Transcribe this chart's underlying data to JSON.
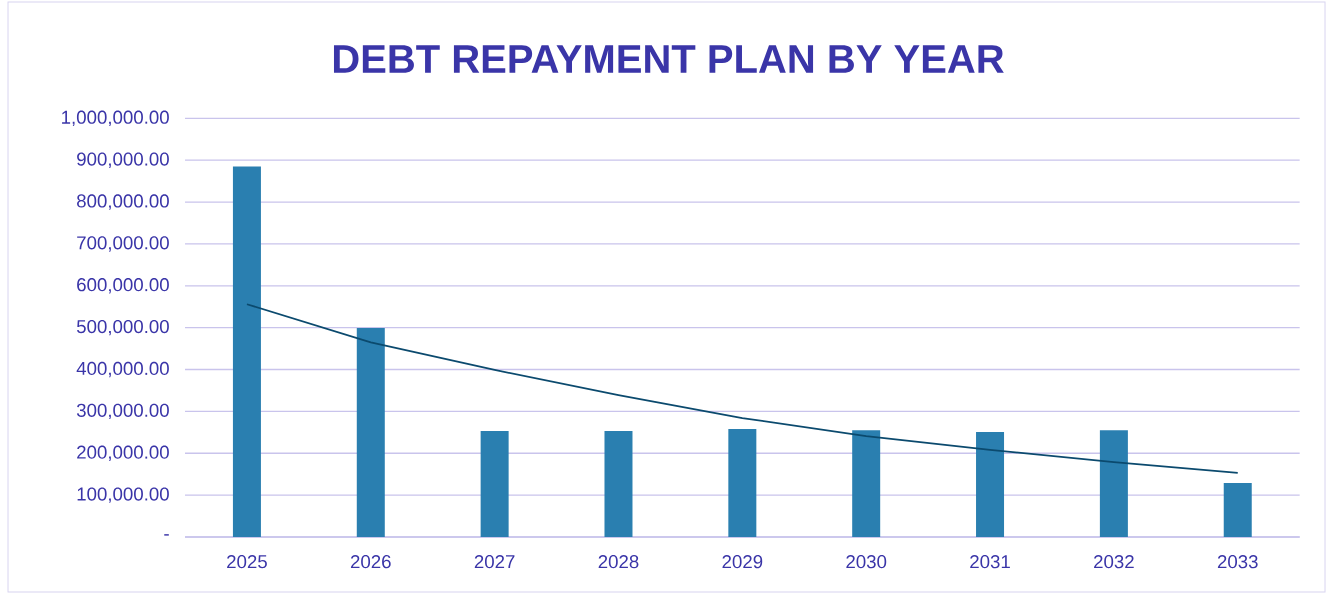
{
  "chart_data": {
    "type": "bar",
    "title": "DEBT REPAYMENT PLAN BY YEAR",
    "categories": [
      "2025",
      "2026",
      "2027",
      "2028",
      "2029",
      "2030",
      "2031",
      "2032",
      "2033"
    ],
    "series": [
      {
        "color": "#2a7fb0",
        "values": [
          885000,
          499000,
          253000,
          253000,
          258000,
          255000,
          251000,
          255000,
          129000
        ]
      },
      {
        "type": "line",
        "color": "#0b4a6e",
        "values": [
          556000,
          465000,
          399000,
          339000,
          284000,
          241000,
          208000,
          179000,
          153000
        ]
      }
    ],
    "ylim": [
      0,
      1000000
    ],
    "yticks": [
      {
        "value": 0,
        "label": "-"
      },
      {
        "value": 100000,
        "label": "100,000.00"
      },
      {
        "value": 200000,
        "label": "200,000.00"
      },
      {
        "value": 300000,
        "label": "300,000.00"
      },
      {
        "value": 400000,
        "label": "400,000.00"
      },
      {
        "value": 500000,
        "label": "500,000.00"
      },
      {
        "value": 600000,
        "label": "600,000.00"
      },
      {
        "value": 700000,
        "label": "700,000.00"
      },
      {
        "value": 800000,
        "label": "800,000.00"
      },
      {
        "value": 900000,
        "label": "900,000.00"
      },
      {
        "value": 1000000,
        "label": "1,000,000.00"
      }
    ],
    "grid": "y",
    "marker": "none"
  }
}
